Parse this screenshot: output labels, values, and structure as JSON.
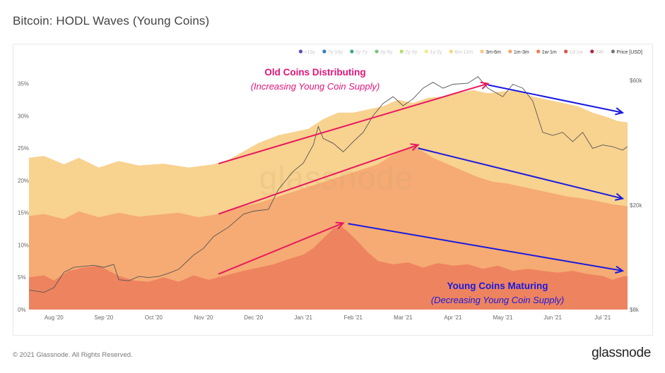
{
  "page": {
    "title": "Bitcoin: HODL Waves (Young Coins)",
    "copyright": "© 2021 Glassnode. All Rights Reserved.",
    "brand": "glassnode",
    "watermark": "glassnode"
  },
  "chart_data": {
    "type": "area",
    "title": "Bitcoin: HODL Waves (Young Coins)",
    "x_labels": [
      "Aug '20",
      "Sep '20",
      "Oct '20",
      "Nov '20",
      "Dec '20",
      "Jan '21",
      "Feb '21",
      "Mar '21",
      "Apr '21",
      "May '21",
      "Jun '21",
      "Jul '21"
    ],
    "x_months": [
      0,
      1,
      2,
      3,
      4,
      5,
      6,
      7,
      8,
      9,
      10,
      11
    ],
    "x_range": [
      -0.5,
      11.5
    ],
    "y_left": {
      "ticks": [
        "0%",
        "5%",
        "10%",
        "15%",
        "20%",
        "25%",
        "30%",
        "35%"
      ],
      "values": [
        0,
        5,
        10,
        15,
        20,
        25,
        30,
        35
      ],
      "range": [
        0,
        35.5
      ]
    },
    "y_right": {
      "scale": "log",
      "ticks": [
        "$8k",
        "$20k",
        "$60k"
      ],
      "values": [
        8000,
        20000,
        60000
      ],
      "range": [
        8000,
        60000
      ]
    },
    "legend": [
      {
        "label": ">10y",
        "color": "#5b4dbd",
        "active": false
      },
      {
        "label": "7y-10y",
        "color": "#2f7fb8",
        "active": false
      },
      {
        "label": "5y-7y",
        "color": "#3fa38f",
        "active": false
      },
      {
        "label": "3y-5y",
        "color": "#7cc47a",
        "active": false
      },
      {
        "label": "2y-3y",
        "color": "#b7dc6b",
        "active": false
      },
      {
        "label": "1y-2y",
        "color": "#f2eb83",
        "active": false
      },
      {
        "label": "6m-12m",
        "color": "#f7d57e",
        "active": false
      },
      {
        "label": "3m-6m",
        "color": "#f7c87a",
        "active": true
      },
      {
        "label": "1m-3m",
        "color": "#f5a368",
        "active": true
      },
      {
        "label": "1w-1m",
        "color": "#ee7d58",
        "active": true
      },
      {
        "label": "1d-1w",
        "color": "#e24f47",
        "active": false
      },
      {
        "label": "24h",
        "color": "#b0283a",
        "active": false
      },
      {
        "label": "Price [USD]",
        "color": "#777777",
        "active": true
      }
    ],
    "series": [
      {
        "name": "3m-6m (cumulative)",
        "color": "#f8d28f",
        "points": [
          [
            -0.5,
            23.5
          ],
          [
            -0.2,
            23.8
          ],
          [
            0.2,
            22.5
          ],
          [
            0.5,
            23.5
          ],
          [
            0.9,
            22.0
          ],
          [
            1.3,
            23.0
          ],
          [
            1.7,
            22.3
          ],
          [
            2.2,
            22.6
          ],
          [
            2.7,
            22.0
          ],
          [
            3.2,
            22.5
          ],
          [
            3.5,
            23.2
          ],
          [
            3.8,
            24.5
          ],
          [
            4.1,
            25.8
          ],
          [
            4.5,
            27.0
          ],
          [
            4.8,
            27.5
          ],
          [
            5.1,
            28.0
          ],
          [
            5.4,
            29.5
          ],
          [
            5.7,
            30.5
          ],
          [
            6.0,
            30.5
          ],
          [
            6.3,
            31.0
          ],
          [
            6.6,
            31.5
          ],
          [
            6.9,
            32.5
          ],
          [
            7.2,
            32.0
          ],
          [
            7.5,
            32.8
          ],
          [
            7.8,
            33.0
          ],
          [
            8.1,
            33.5
          ],
          [
            8.4,
            34.0
          ],
          [
            8.7,
            33.5
          ],
          [
            9.0,
            33.8
          ],
          [
            9.3,
            34.0
          ],
          [
            9.6,
            33.0
          ],
          [
            9.9,
            32.5
          ],
          [
            10.2,
            32.0
          ],
          [
            10.5,
            31.5
          ],
          [
            10.8,
            30.5
          ],
          [
            11.1,
            29.8
          ],
          [
            11.3,
            29.2
          ],
          [
            11.5,
            29.0
          ]
        ]
      },
      {
        "name": "1m-3m (cumulative)",
        "color": "#f5ab73",
        "points": [
          [
            -0.5,
            14.5
          ],
          [
            -0.2,
            14.8
          ],
          [
            0.2,
            14.0
          ],
          [
            0.5,
            15.2
          ],
          [
            0.9,
            14.3
          ],
          [
            1.3,
            15.0
          ],
          [
            1.7,
            14.4
          ],
          [
            2.1,
            14.7
          ],
          [
            2.5,
            15.0
          ],
          [
            2.9,
            14.3
          ],
          [
            3.3,
            14.8
          ],
          [
            3.7,
            15.8
          ],
          [
            4.1,
            16.5
          ],
          [
            4.5,
            17.5
          ],
          [
            4.9,
            18.5
          ],
          [
            5.3,
            19.5
          ],
          [
            5.7,
            20.5
          ],
          [
            6.1,
            21.5
          ],
          [
            6.5,
            22.5
          ],
          [
            6.8,
            24.0
          ],
          [
            7.0,
            24.8
          ],
          [
            7.2,
            25.3
          ],
          [
            7.4,
            24.5
          ],
          [
            7.6,
            23.5
          ],
          [
            7.9,
            22.5
          ],
          [
            8.2,
            21.5
          ],
          [
            8.5,
            20.5
          ],
          [
            8.8,
            19.8
          ],
          [
            9.1,
            19.5
          ],
          [
            9.4,
            19.0
          ],
          [
            9.7,
            18.5
          ],
          [
            10.0,
            18.0
          ],
          [
            10.3,
            17.5
          ],
          [
            10.6,
            17.2
          ],
          [
            10.9,
            16.8
          ],
          [
            11.2,
            16.3
          ],
          [
            11.5,
            16.0
          ]
        ]
      },
      {
        "name": "1w-1m (cumulative)",
        "color": "#ee8360",
        "points": [
          [
            -0.5,
            5.0
          ],
          [
            -0.2,
            5.3
          ],
          [
            0.0,
            4.5
          ],
          [
            0.3,
            6.0
          ],
          [
            0.6,
            6.5
          ],
          [
            0.9,
            6.8
          ],
          [
            1.1,
            6.0
          ],
          [
            1.3,
            5.2
          ],
          [
            1.6,
            4.5
          ],
          [
            1.9,
            4.3
          ],
          [
            2.2,
            5.0
          ],
          [
            2.5,
            4.3
          ],
          [
            2.8,
            5.3
          ],
          [
            3.1,
            4.6
          ],
          [
            3.4,
            5.2
          ],
          [
            3.8,
            6.0
          ],
          [
            4.1,
            6.5
          ],
          [
            4.4,
            7.0
          ],
          [
            4.7,
            7.8
          ],
          [
            5.0,
            8.5
          ],
          [
            5.2,
            9.5
          ],
          [
            5.4,
            11.0
          ],
          [
            5.6,
            12.5
          ],
          [
            5.75,
            13.0
          ],
          [
            5.9,
            12.0
          ],
          [
            6.1,
            10.5
          ],
          [
            6.3,
            8.8
          ],
          [
            6.5,
            7.5
          ],
          [
            6.8,
            7.0
          ],
          [
            7.1,
            7.3
          ],
          [
            7.4,
            6.5
          ],
          [
            7.7,
            7.2
          ],
          [
            8.0,
            6.8
          ],
          [
            8.3,
            7.0
          ],
          [
            8.6,
            6.3
          ],
          [
            8.9,
            6.8
          ],
          [
            9.2,
            6.0
          ],
          [
            9.5,
            6.3
          ],
          [
            9.8,
            6.0
          ],
          [
            10.1,
            5.7
          ],
          [
            10.4,
            6.0
          ],
          [
            10.7,
            5.5
          ],
          [
            11.0,
            5.2
          ],
          [
            11.2,
            4.6
          ],
          [
            11.4,
            5.1
          ],
          [
            11.5,
            5.2
          ]
        ]
      }
    ],
    "price_series": {
      "name": "Price [USD]",
      "color": "#555555",
      "points": [
        [
          -0.5,
          9500
        ],
        [
          -0.2,
          9300
        ],
        [
          0.0,
          9700
        ],
        [
          0.2,
          11100
        ],
        [
          0.4,
          11600
        ],
        [
          0.6,
          11700
        ],
        [
          0.8,
          11800
        ],
        [
          1.0,
          11600
        ],
        [
          1.2,
          11900
        ],
        [
          1.3,
          10400
        ],
        [
          1.5,
          10300
        ],
        [
          1.7,
          10700
        ],
        [
          1.9,
          10600
        ],
        [
          2.1,
          10700
        ],
        [
          2.3,
          11000
        ],
        [
          2.5,
          11400
        ],
        [
          2.8,
          12900
        ],
        [
          3.0,
          13700
        ],
        [
          3.2,
          15200
        ],
        [
          3.5,
          16500
        ],
        [
          3.8,
          18500
        ],
        [
          4.0,
          19000
        ],
        [
          4.3,
          19300
        ],
        [
          4.5,
          23000
        ],
        [
          4.8,
          27000
        ],
        [
          5.0,
          29000
        ],
        [
          5.2,
          34000
        ],
        [
          5.3,
          40000
        ],
        [
          5.4,
          36000
        ],
        [
          5.6,
          34500
        ],
        [
          5.8,
          32000
        ],
        [
          6.0,
          35000
        ],
        [
          6.2,
          38000
        ],
        [
          6.4,
          44000
        ],
        [
          6.6,
          49000
        ],
        [
          6.8,
          52000
        ],
        [
          7.0,
          48000
        ],
        [
          7.2,
          51000
        ],
        [
          7.4,
          56000
        ],
        [
          7.6,
          59000
        ],
        [
          7.8,
          56000
        ],
        [
          8.0,
          58000
        ],
        [
          8.3,
          58500
        ],
        [
          8.5,
          62000
        ],
        [
          8.7,
          56000
        ],
        [
          9.0,
          52000
        ],
        [
          9.2,
          58000
        ],
        [
          9.4,
          56000
        ],
        [
          9.6,
          50000
        ],
        [
          9.8,
          38000
        ],
        [
          10.0,
          37000
        ],
        [
          10.2,
          38000
        ],
        [
          10.4,
          35000
        ],
        [
          10.6,
          38000
        ],
        [
          10.8,
          33000
        ],
        [
          11.0,
          34000
        ],
        [
          11.2,
          33500
        ],
        [
          11.4,
          32500
        ],
        [
          11.5,
          33500
        ]
      ]
    },
    "annotations": [
      {
        "text": "Old Coins Distributing",
        "color": "#e4157a",
        "bold": true,
        "italic": false
      },
      {
        "text": "(Increasing Young Coin Supply)",
        "color": "#e4157a",
        "bold": false,
        "italic": true
      },
      {
        "text": "Young Coins Maturing",
        "color": "#1a1adf",
        "bold": true,
        "italic": false
      },
      {
        "text": "(Decreasing Young Coin Supply)",
        "color": "#1a1adf",
        "bold": false,
        "italic": true
      }
    ],
    "trend_arrows": [
      {
        "label": "3m-6m increase",
        "color": "#e8195f",
        "from": [
          3.3,
          22.6
        ],
        "to": [
          8.7,
          35.0
        ]
      },
      {
        "label": "1m-3m increase",
        "color": "#e8195f",
        "from": [
          3.3,
          14.8
        ],
        "to": [
          7.3,
          25.5
        ]
      },
      {
        "label": "1w-1m increase",
        "color": "#e8195f",
        "from": [
          3.3,
          5.5
        ],
        "to": [
          5.8,
          13.4
        ]
      },
      {
        "label": "3m-6m decrease",
        "color": "#1a1adf",
        "from": [
          8.7,
          34.8
        ],
        "to": [
          11.4,
          30.5
        ]
      },
      {
        "label": "1m-3m decrease",
        "color": "#1a1adf",
        "from": [
          7.3,
          25.0
        ],
        "to": [
          11.4,
          17.2
        ]
      },
      {
        "label": "1w-1m decrease",
        "color": "#1a1adf",
        "from": [
          5.9,
          13.3
        ],
        "to": [
          11.4,
          6.0
        ]
      }
    ]
  }
}
